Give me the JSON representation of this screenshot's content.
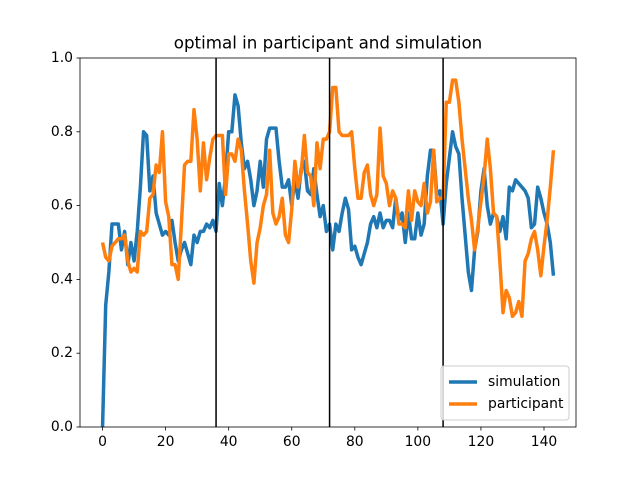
{
  "chart_data": {
    "type": "line",
    "title": "optimal in participant and simulation",
    "x": [
      0,
      1,
      2,
      3,
      4,
      5,
      6,
      7,
      8,
      9,
      10,
      11,
      12,
      13,
      14,
      15,
      16,
      17,
      18,
      19,
      20,
      21,
      22,
      23,
      24,
      25,
      26,
      27,
      28,
      29,
      30,
      31,
      32,
      33,
      34,
      35,
      36,
      37,
      38,
      39,
      40,
      41,
      42,
      43,
      44,
      45,
      46,
      47,
      48,
      49,
      50,
      51,
      52,
      53,
      54,
      55,
      56,
      57,
      58,
      59,
      60,
      61,
      62,
      63,
      64,
      65,
      66,
      67,
      68,
      69,
      70,
      71,
      72,
      73,
      74,
      75,
      76,
      77,
      78,
      79,
      80,
      81,
      82,
      83,
      84,
      85,
      86,
      87,
      88,
      89,
      90,
      91,
      92,
      93,
      94,
      95,
      96,
      97,
      98,
      99,
      100,
      101,
      102,
      103,
      104,
      105,
      106,
      107,
      108,
      109,
      110,
      111,
      112,
      113,
      114,
      115,
      116,
      117,
      118,
      119,
      120,
      121,
      122,
      123,
      124,
      125,
      126,
      127,
      128,
      129,
      130,
      131,
      132,
      133,
      134,
      135,
      136,
      137,
      138,
      139,
      140,
      141,
      142,
      143
    ],
    "series": [
      {
        "name": "simulation",
        "color": "#1f77b4",
        "values": [
          0.0,
          0.33,
          0.42,
          0.55,
          0.55,
          0.55,
          0.48,
          0.53,
          0.44,
          0.5,
          0.45,
          0.53,
          0.65,
          0.8,
          0.79,
          0.64,
          0.68,
          0.58,
          0.55,
          0.52,
          0.53,
          0.52,
          0.56,
          0.5,
          0.45,
          0.48,
          0.5,
          0.47,
          0.44,
          0.52,
          0.5,
          0.53,
          0.53,
          0.55,
          0.54,
          0.56,
          0.53,
          0.66,
          0.6,
          0.68,
          0.8,
          0.8,
          0.9,
          0.87,
          0.77,
          0.7,
          0.72,
          0.67,
          0.6,
          0.64,
          0.72,
          0.65,
          0.78,
          0.81,
          0.81,
          0.81,
          0.72,
          0.65,
          0.65,
          0.67,
          0.6,
          0.67,
          0.62,
          0.7,
          0.72,
          0.64,
          0.63,
          0.7,
          0.63,
          0.57,
          0.6,
          0.53,
          0.55,
          0.48,
          0.55,
          0.53,
          0.58,
          0.62,
          0.59,
          0.48,
          0.49,
          0.46,
          0.44,
          0.47,
          0.5,
          0.55,
          0.57,
          0.54,
          0.58,
          0.54,
          0.56,
          0.56,
          0.54,
          0.62,
          0.56,
          0.58,
          0.5,
          0.58,
          0.51,
          0.51,
          0.58,
          0.52,
          0.55,
          0.68,
          0.75,
          0.75,
          0.63,
          0.64,
          0.55,
          0.66,
          0.73,
          0.8,
          0.76,
          0.74,
          0.62,
          0.52,
          0.42,
          0.37,
          0.48,
          0.53,
          0.64,
          0.7,
          0.6,
          0.55,
          0.58,
          0.57,
          0.53,
          0.57,
          0.51,
          0.65,
          0.64,
          0.67,
          0.66,
          0.65,
          0.64,
          0.62,
          0.54,
          0.55,
          0.65,
          0.62,
          0.58,
          0.55,
          0.5,
          0.41
        ]
      },
      {
        "name": "participant",
        "color": "#ff7f0e",
        "values": [
          0.5,
          0.46,
          0.45,
          0.49,
          0.5,
          0.51,
          0.51,
          0.52,
          0.45,
          0.42,
          0.43,
          0.42,
          0.53,
          0.52,
          0.53,
          0.62,
          0.63,
          0.71,
          0.69,
          0.8,
          0.61,
          0.57,
          0.44,
          0.44,
          0.4,
          0.55,
          0.71,
          0.72,
          0.72,
          0.86,
          0.78,
          0.64,
          0.77,
          0.67,
          0.73,
          0.78,
          0.79,
          0.79,
          0.79,
          0.63,
          0.74,
          0.74,
          0.72,
          0.78,
          0.75,
          0.64,
          0.55,
          0.45,
          0.39,
          0.5,
          0.54,
          0.6,
          0.63,
          0.75,
          0.58,
          0.55,
          0.57,
          0.62,
          0.52,
          0.5,
          0.59,
          0.72,
          0.65,
          0.69,
          0.79,
          0.69,
          0.68,
          0.6,
          0.77,
          0.7,
          0.78,
          0.78,
          0.8,
          0.92,
          0.92,
          0.8,
          0.79,
          0.79,
          0.79,
          0.8,
          0.7,
          0.62,
          0.62,
          0.69,
          0.71,
          0.63,
          0.6,
          0.63,
          0.81,
          0.68,
          0.66,
          0.6,
          0.64,
          0.62,
          0.55,
          0.55,
          0.54,
          0.64,
          0.56,
          0.64,
          0.61,
          0.6,
          0.66,
          0.58,
          0.61,
          0.75,
          0.61,
          0.62,
          0.62,
          0.88,
          0.88,
          0.94,
          0.94,
          0.88,
          0.78,
          0.7,
          0.62,
          0.56,
          0.48,
          0.54,
          0.61,
          0.68,
          0.78,
          0.7,
          0.58,
          0.57,
          0.45,
          0.31,
          0.37,
          0.35,
          0.3,
          0.31,
          0.34,
          0.3,
          0.45,
          0.47,
          0.51,
          0.53,
          0.48,
          0.41,
          0.49,
          0.56,
          0.65,
          0.75
        ]
      }
    ],
    "vlines": [
      36,
      72,
      108
    ],
    "xlim": [
      -7.15,
      150.15
    ],
    "ylim": [
      0,
      1
    ],
    "xticks": [
      0,
      20,
      40,
      60,
      80,
      100,
      120,
      140
    ],
    "yticks": [
      {
        "value": 0,
        "label": "0.0"
      },
      0.2,
      0.4,
      0.6,
      0.8,
      {
        "value": 1,
        "label": "1.0"
      }
    ],
    "legend": "lower right",
    "grid": false
  }
}
